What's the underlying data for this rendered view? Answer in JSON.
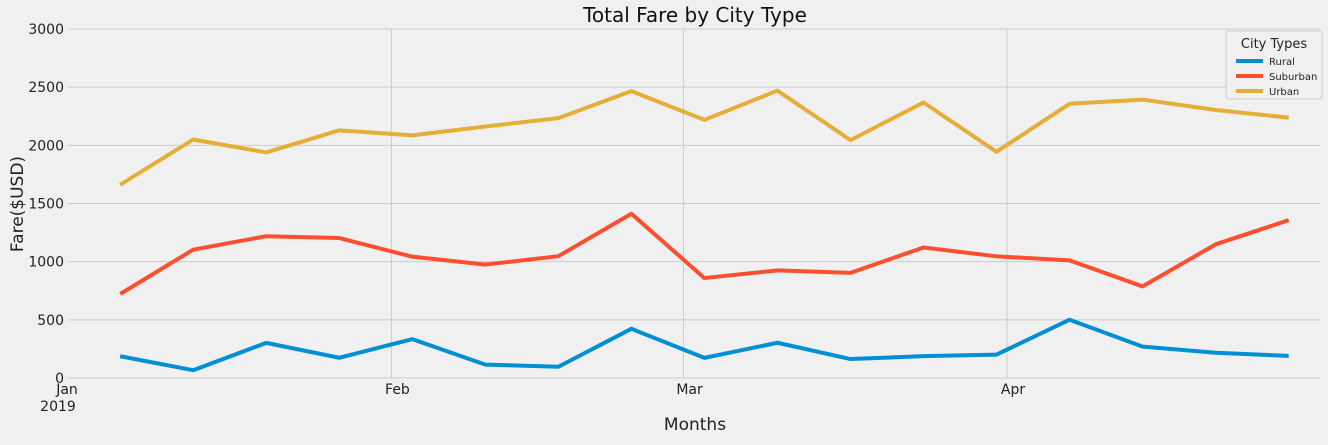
{
  "chart_data": {
    "type": "line",
    "title": "Total Fare by City Type",
    "xlabel": "Months",
    "ylabel": "Fare($USD)",
    "ylim": [
      0,
      3000
    ],
    "yticks": [
      "0",
      "500",
      "1000",
      "1500",
      "2000",
      "2500",
      "3000"
    ],
    "xticks": [
      {
        "date": "2019-01-01",
        "label": "Jan",
        "sublabel": "2019"
      },
      {
        "date": "2019-02-01",
        "label": "Feb",
        "sublabel": ""
      },
      {
        "date": "2019-03-01",
        "label": "Mar",
        "sublabel": ""
      },
      {
        "date": "2019-04-01",
        "label": "Apr",
        "sublabel": ""
      }
    ],
    "x": [
      "2019-01-06",
      "2019-01-13",
      "2019-01-20",
      "2019-01-27",
      "2019-02-03",
      "2019-02-10",
      "2019-02-17",
      "2019-02-24",
      "2019-03-03",
      "2019-03-10",
      "2019-03-17",
      "2019-03-24",
      "2019-03-31",
      "2019-04-07",
      "2019-04-14",
      "2019-04-21",
      "2019-04-28"
    ],
    "grid": true,
    "legend": {
      "title": "City Types",
      "placement": "top-right"
    },
    "series": [
      {
        "name": "Rural",
        "color": "#008fd5",
        "values": [
          187,
          67,
          302,
          174,
          334,
          115,
          97,
          423,
          173,
          303,
          163,
          188,
          201,
          501,
          270,
          217,
          190
        ]
      },
      {
        "name": "Suburban",
        "color": "#fc4f30",
        "values": [
          722,
          1103,
          1219,
          1203,
          1043,
          975,
          1047,
          1412,
          859,
          925,
          904,
          1122,
          1046,
          1011,
          787,
          1149,
          1357
        ]
      },
      {
        "name": "Urban",
        "color": "#e5ae38",
        "values": [
          1661,
          2050,
          1939,
          2129,
          2086,
          2162,
          2234,
          2466,
          2219,
          2470,
          2045,
          2368,
          1944,
          2357,
          2393,
          2304,
          2238
        ]
      }
    ]
  }
}
